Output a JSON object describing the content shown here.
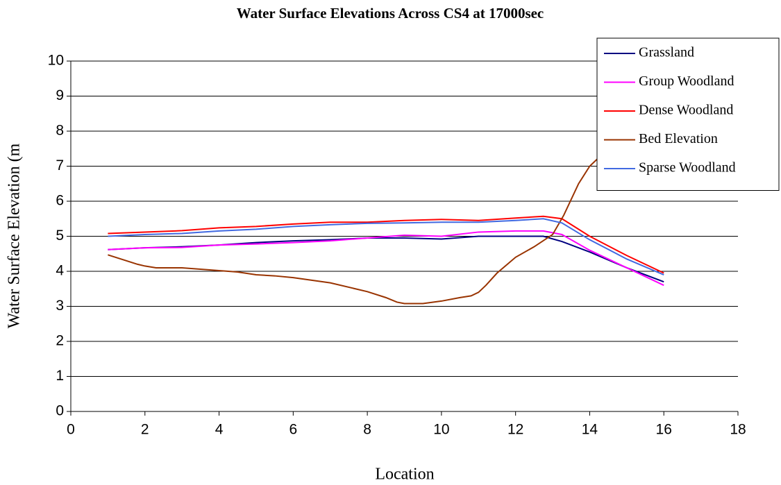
{
  "chart_data": {
    "type": "line",
    "title": "Water Surface Elevations Across CS4 at 17000sec",
    "x_label": "Location",
    "y_label": "Water Surface Elevation (m",
    "xlim": [
      0,
      18
    ],
    "xticks": [
      0,
      2,
      4,
      6,
      8,
      10,
      12,
      14,
      16,
      18
    ],
    "ylim": [
      0,
      10
    ],
    "yticks": [
      0,
      1,
      2,
      3,
      4,
      5,
      6,
      7,
      8,
      9,
      10
    ],
    "grid": true,
    "legend_position": "top-right",
    "series": [
      {
        "name": "Grassland",
        "color": "#000080",
        "x": [
          1,
          2,
          3,
          4,
          5,
          6,
          7,
          8,
          9,
          10,
          11,
          12,
          12.75,
          13.25,
          14,
          15,
          16
        ],
        "values": [
          4.62,
          4.67,
          4.7,
          4.75,
          4.82,
          4.87,
          4.9,
          4.95,
          4.95,
          4.92,
          5.0,
          5.0,
          5.0,
          4.85,
          4.55,
          4.1,
          3.7
        ]
      },
      {
        "name": "Group Woodland",
        "color": "#ff00ff",
        "x": [
          1,
          2,
          3,
          4,
          5,
          6,
          7,
          8,
          9,
          10,
          11,
          12,
          12.75,
          13.25,
          14,
          15,
          16
        ],
        "values": [
          4.62,
          4.67,
          4.68,
          4.75,
          4.78,
          4.82,
          4.87,
          4.95,
          5.03,
          5.0,
          5.12,
          5.15,
          5.15,
          5.05,
          4.6,
          4.1,
          3.6
        ]
      },
      {
        "name": "Dense Woodland",
        "color": "#ff0000",
        "x": [
          1,
          2,
          3,
          4,
          5,
          6,
          7,
          8,
          9,
          10,
          11,
          12,
          12.75,
          13.25,
          14,
          15,
          16
        ],
        "values": [
          5.08,
          5.12,
          5.16,
          5.24,
          5.28,
          5.35,
          5.4,
          5.4,
          5.45,
          5.48,
          5.45,
          5.52,
          5.57,
          5.5,
          5.0,
          4.45,
          3.95
        ]
      },
      {
        "name": "Bed Elevation",
        "color": "#993300",
        "x": [
          1,
          1.5,
          1.8,
          2,
          2.3,
          3,
          4,
          4.5,
          5,
          5.5,
          6,
          7,
          8,
          8.5,
          8.8,
          9,
          9.5,
          10,
          10.5,
          10.8,
          11,
          11.2,
          11.5,
          12,
          12.5,
          13,
          13.3,
          13.7,
          14,
          14.3
        ],
        "values": [
          4.47,
          4.3,
          4.2,
          4.15,
          4.1,
          4.1,
          4.02,
          3.98,
          3.9,
          3.87,
          3.82,
          3.67,
          3.42,
          3.25,
          3.12,
          3.08,
          3.08,
          3.15,
          3.25,
          3.3,
          3.4,
          3.6,
          3.95,
          4.4,
          4.7,
          5.05,
          5.6,
          6.5,
          7.0,
          7.3
        ]
      },
      {
        "name": "Sparse Woodland",
        "color": "#4169e1",
        "x": [
          1,
          2,
          3,
          4,
          5,
          6,
          7,
          8,
          9,
          10,
          11,
          12,
          12.75,
          13.25,
          14,
          15,
          16
        ],
        "values": [
          5.0,
          5.05,
          5.08,
          5.15,
          5.2,
          5.28,
          5.33,
          5.37,
          5.38,
          5.4,
          5.4,
          5.45,
          5.5,
          5.38,
          4.9,
          4.35,
          3.9
        ]
      }
    ]
  }
}
